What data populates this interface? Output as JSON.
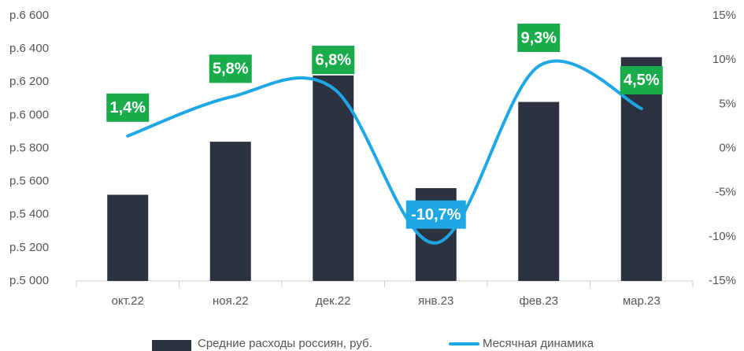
{
  "chart_data": {
    "type": "bar_line",
    "categories": [
      "окт.22",
      "ноя.22",
      "дек.22",
      "янв.23",
      "фев.23",
      "мар.23"
    ],
    "series": [
      {
        "name": "Средние расходы россиян, руб.",
        "type": "bar",
        "color": "#2d3240",
        "values": [
          5520,
          5840,
          6240,
          5560,
          6080,
          6350
        ]
      },
      {
        "name": "Месячная динамика",
        "type": "line",
        "axis": "y2",
        "color": "#1ea7e4",
        "values": [
          1.4,
          5.8,
          6.8,
          -10.7,
          9.3,
          4.5
        ],
        "value_labels": [
          "1,4%",
          "5,8%",
          "6,8%",
          "-10,7%",
          "9,3%",
          "4,5%"
        ]
      }
    ],
    "label_colors": {
      "positive": "#1aab4b",
      "negative": "#1ea7e4"
    },
    "ylim": [
      5000,
      6600
    ],
    "yticks": [
      {
        "value": 5000,
        "label": "р.5 000"
      },
      {
        "value": 5200,
        "label": "р.5 200"
      },
      {
        "value": 5400,
        "label": "р.5 400"
      },
      {
        "value": 5600,
        "label": "р.5 600"
      },
      {
        "value": 5800,
        "label": "р.5 800"
      },
      {
        "value": 6000,
        "label": "р.6 000"
      },
      {
        "value": 6200,
        "label": "р.6 200"
      },
      {
        "value": 6400,
        "label": "р.6 400"
      },
      {
        "value": 6600,
        "label": "р.6 600"
      }
    ],
    "y2lim": [
      -15,
      15
    ],
    "y2ticks": [
      {
        "value": -15,
        "label": "-15%"
      },
      {
        "value": -10,
        "label": "-10%"
      },
      {
        "value": -5,
        "label": "-5%"
      },
      {
        "value": 0,
        "label": "0%"
      },
      {
        "value": 5,
        "label": "5%"
      },
      {
        "value": 10,
        "label": "10%"
      },
      {
        "value": 15,
        "label": "15%"
      }
    ],
    "grid": false
  }
}
